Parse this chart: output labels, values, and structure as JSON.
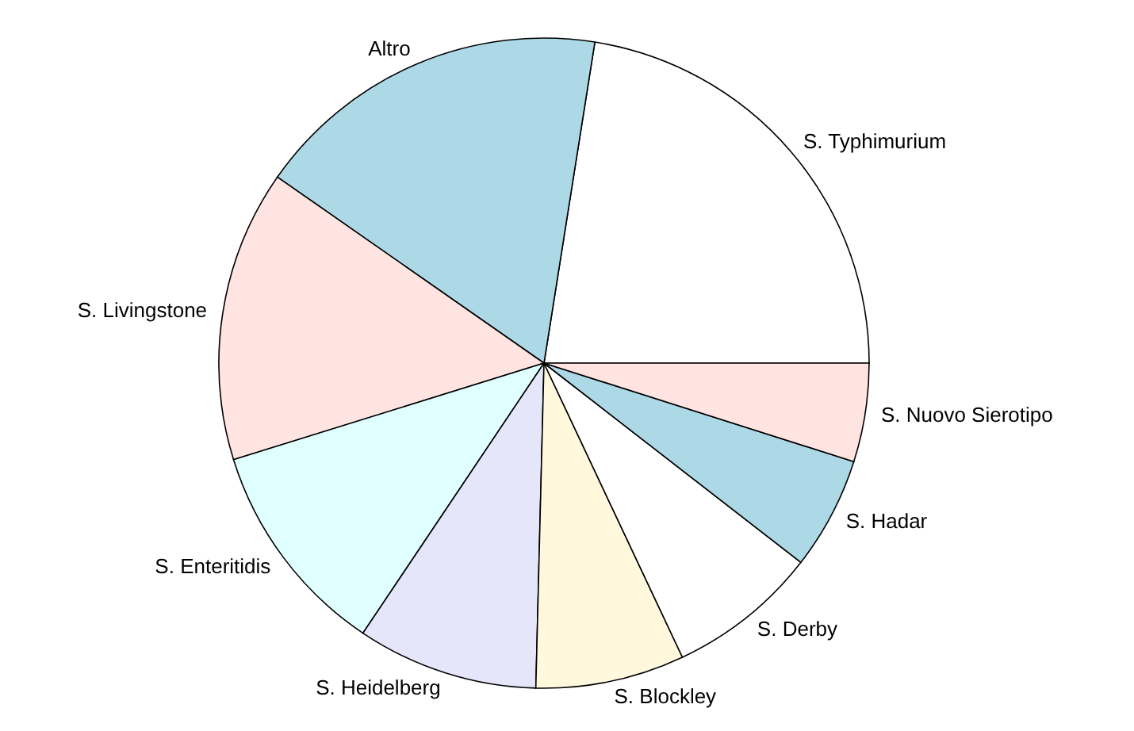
{
  "chart_data": {
    "type": "pie",
    "categories": [
      "S. Typhimurium",
      "Altro",
      "S. Livingstone",
      "S. Enteritidis",
      "S. Heidelberg",
      "S. Blockley",
      "S. Derby",
      "S. Hadar",
      "S. Nuovo Sierotipo"
    ],
    "values": [
      22.5,
      17.8,
      14.5,
      10.8,
      9.0,
      7.4,
      7.5,
      5.6,
      4.9
    ],
    "colors": [
      "#ffffff",
      "#add8e6",
      "#ffe4e1",
      "#e0ffff",
      "#e6e6fa",
      "#fff8dc",
      "#ffffff",
      "#add8e6",
      "#ffe4e1"
    ]
  }
}
